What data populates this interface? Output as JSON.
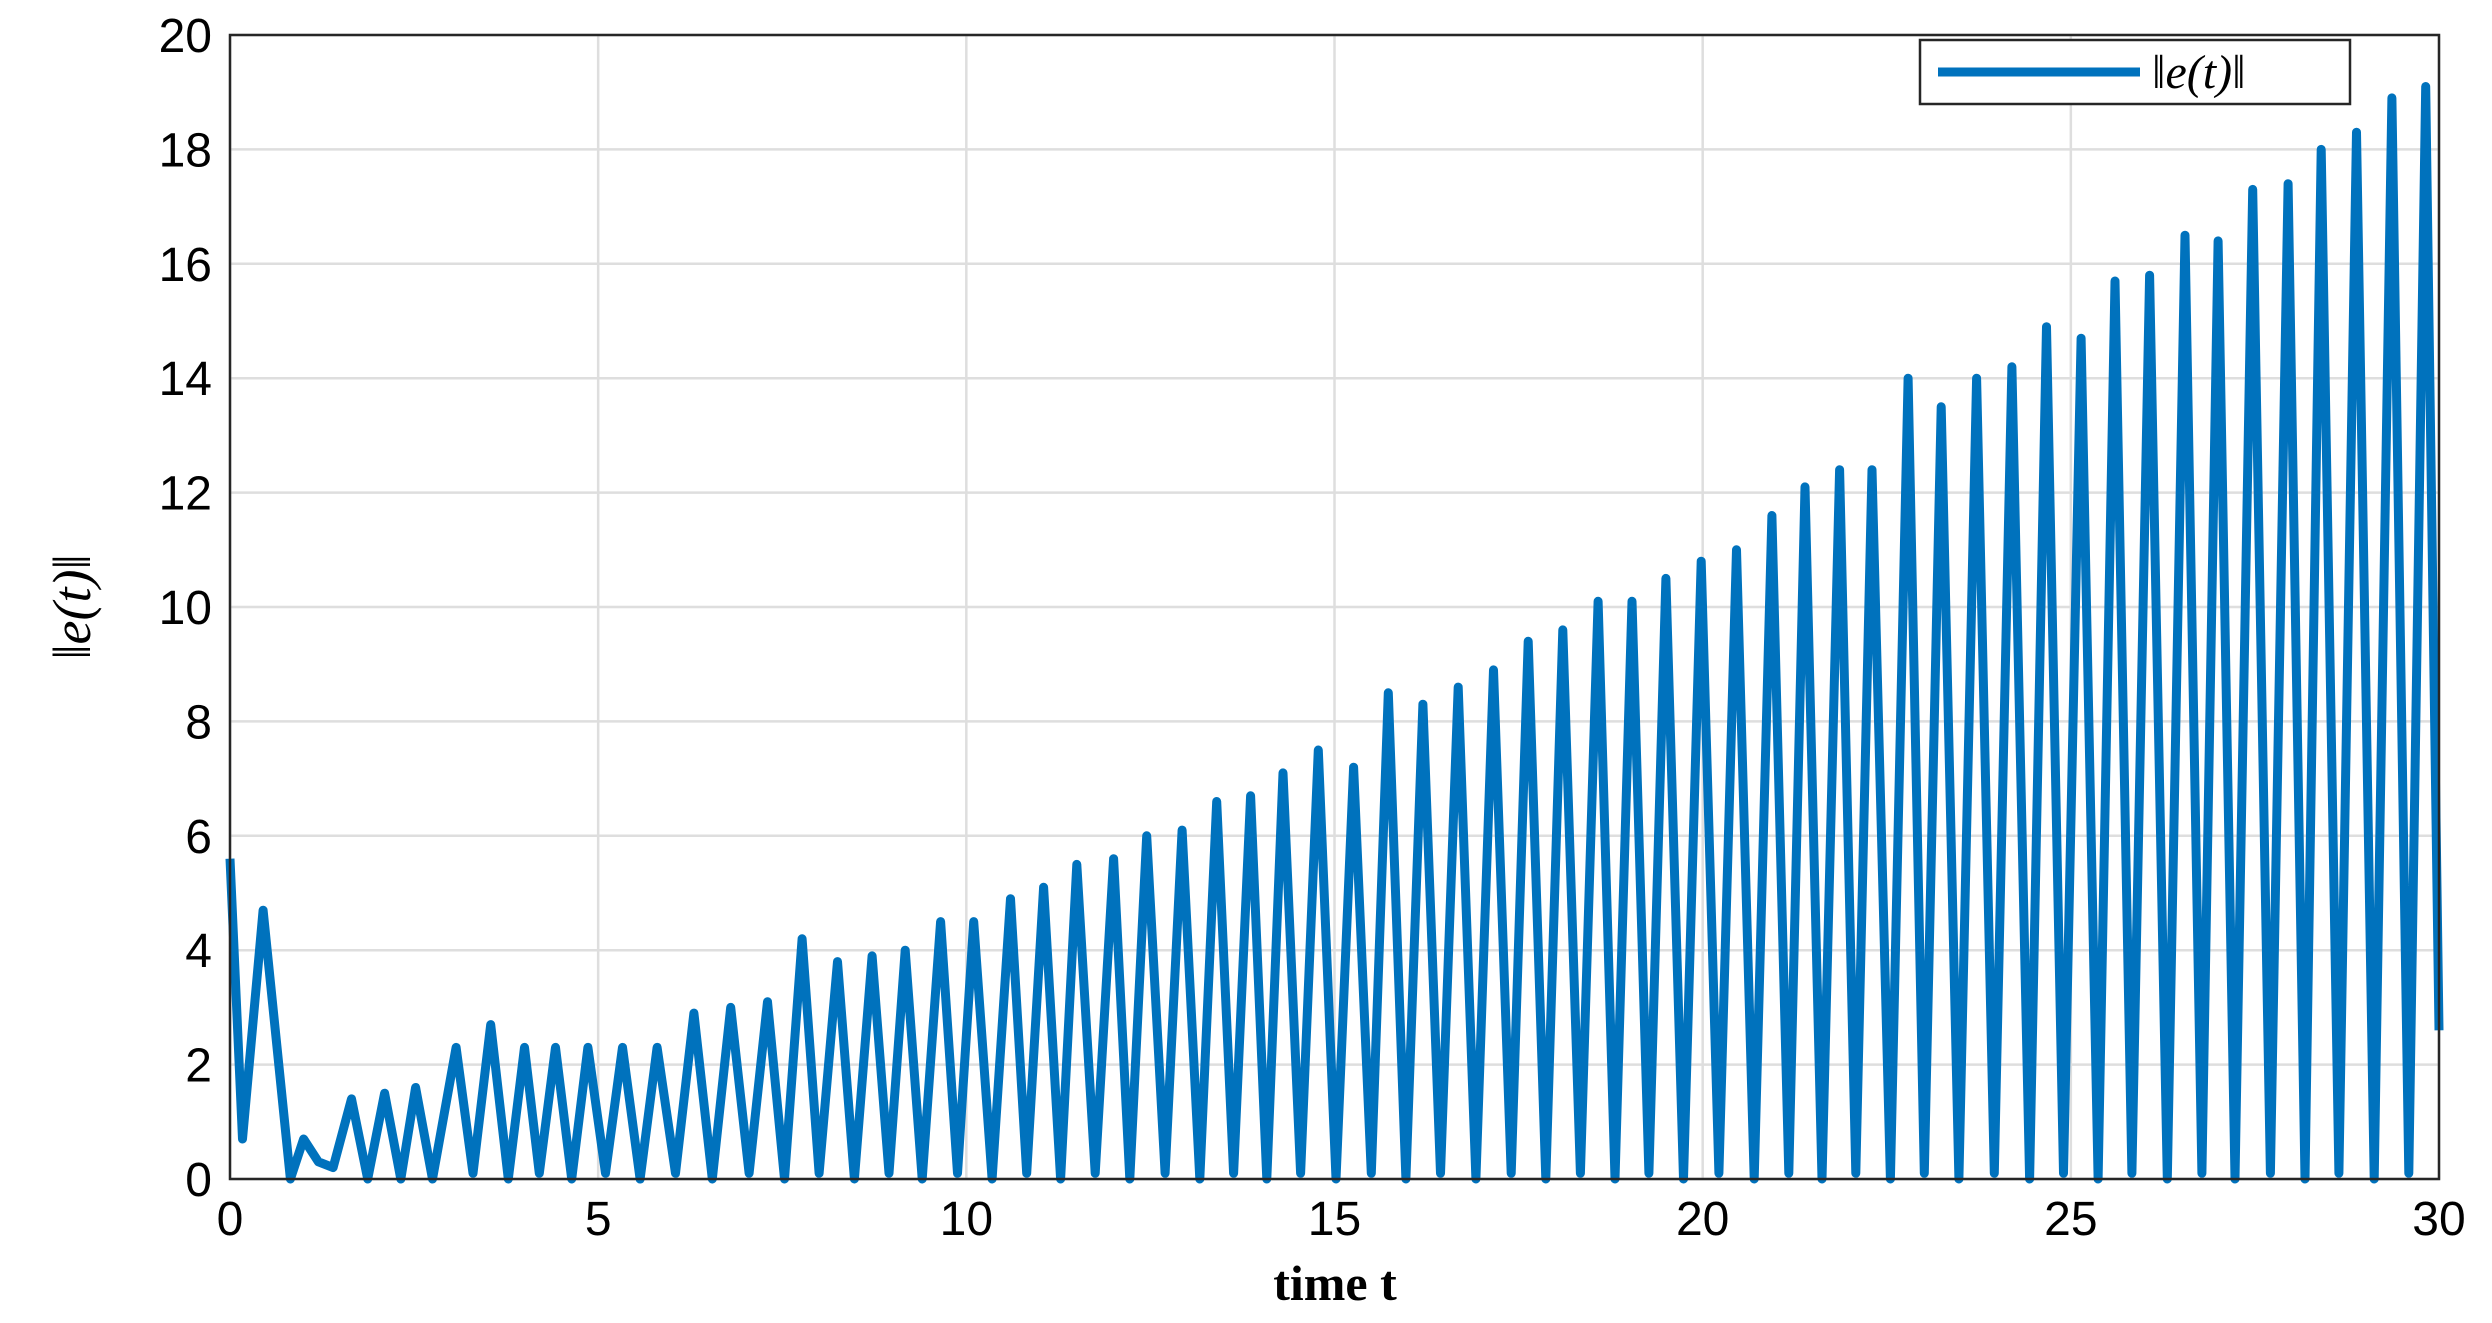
{
  "chart_data": {
    "type": "line",
    "xlabel": "time t",
    "ylabel": "‖e(t)‖",
    "x": [
      0,
      0.17,
      0.45,
      0.82,
      1.0,
      1.2,
      1.4,
      1.65,
      1.87,
      2.1,
      2.32,
      2.52,
      2.75,
      3.07,
      3.3,
      3.54,
      3.78,
      4.0,
      4.2,
      4.42,
      4.64,
      4.86,
      5.1,
      5.33,
      5.57,
      5.8,
      6.05,
      6.3,
      6.55,
      6.8,
      7.05,
      7.3,
      7.53,
      7.77,
      8.0,
      8.25,
      8.48,
      8.72,
      8.95,
      9.17,
      9.4,
      9.65,
      9.88,
      10.1,
      10.35,
      10.6,
      10.82,
      11.05,
      11.28,
      11.5,
      11.75,
      12.0,
      12.22,
      12.45,
      12.7,
      12.93,
      13.17,
      13.4,
      13.63,
      13.86,
      14.08,
      14.3,
      14.54,
      14.78,
      15.02,
      15.26,
      15.5,
      15.73,
      15.97,
      16.2,
      16.44,
      16.68,
      16.92,
      17.16,
      17.4,
      17.63,
      17.87,
      18.1,
      18.34,
      18.58,
      18.81,
      19.04,
      19.27,
      19.5,
      19.74,
      19.98,
      20.22,
      20.46,
      20.7,
      20.94,
      21.17,
      21.39,
      21.62,
      21.86,
      22.08,
      22.3,
      22.55,
      22.79,
      23.01,
      23.24,
      23.48,
      23.72,
      23.96,
      24.2,
      24.44,
      24.67,
      24.9,
      25.14,
      25.37,
      25.6,
      25.83,
      26.07,
      26.31,
      26.55,
      26.78,
      27.0,
      27.23,
      27.47,
      27.71,
      27.95,
      28.18,
      28.4,
      28.64,
      28.88,
      29.12,
      29.36,
      29.59,
      29.82,
      30
    ],
    "series": [
      {
        "name": "‖e(t)‖",
        "color": "#0072bd",
        "values": [
          5.6,
          0.7,
          4.7,
          0,
          0.7,
          0.3,
          0.2,
          1.4,
          0,
          1.5,
          0,
          1.6,
          0,
          2.3,
          0.1,
          2.7,
          0,
          2.3,
          0.1,
          2.3,
          0,
          2.3,
          0.1,
          2.3,
          0,
          2.3,
          0.1,
          2.9,
          0,
          3.0,
          0.1,
          3.1,
          0,
          4.2,
          0.1,
          3.8,
          0,
          3.9,
          0.1,
          4.0,
          0,
          4.5,
          0.1,
          4.5,
          0,
          4.9,
          0.1,
          5.1,
          0,
          5.5,
          0.1,
          5.6,
          0,
          6.0,
          0.1,
          6.1,
          0,
          6.6,
          0.1,
          6.7,
          0,
          7.1,
          0.1,
          7.5,
          0,
          7.2,
          0.1,
          8.5,
          0,
          8.3,
          0.1,
          8.6,
          0,
          8.9,
          0.1,
          9.4,
          0,
          9.6,
          0.1,
          10.1,
          0,
          10.1,
          0.1,
          10.5,
          0,
          10.8,
          0.1,
          11.0,
          0,
          11.6,
          0.1,
          12.1,
          0,
          12.4,
          0.1,
          12.4,
          0,
          14.0,
          0.1,
          13.5,
          0,
          14.0,
          0.1,
          14.2,
          0,
          14.9,
          0.1,
          14.7,
          0,
          15.7,
          0.1,
          15.8,
          0,
          16.5,
          0.1,
          16.4,
          0,
          17.3,
          0.1,
          17.4,
          0,
          18.0,
          0.1,
          18.3,
          0,
          18.9,
          0.1,
          19.1,
          2.6
        ]
      }
    ],
    "xlim": [
      0,
      30
    ],
    "xticks": [
      0,
      5,
      10,
      15,
      20,
      25,
      30
    ],
    "ylim": [
      0,
      20
    ],
    "yticks": [
      0,
      2,
      4,
      6,
      8,
      10,
      12,
      14,
      16,
      18,
      20
    ],
    "grid": true,
    "legend": "upper right"
  }
}
